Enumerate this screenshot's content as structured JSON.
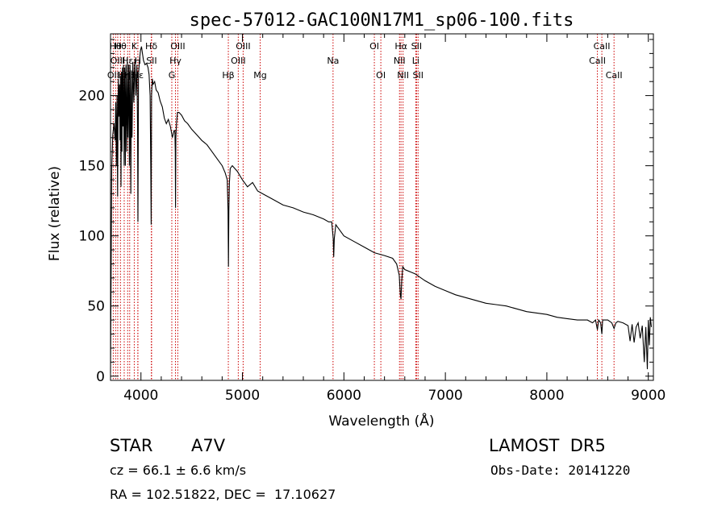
{
  "chart_data": {
    "type": "line",
    "title": "spec-57012-GAC100N17M1_sp06-100.fits",
    "xlabel": "Wavelength (Å)",
    "ylabel": "Flux (relative)",
    "xlim": [
      3700,
      9050
    ],
    "ylim": [
      -3,
      244
    ],
    "xticks": [
      4000,
      5000,
      6000,
      7000,
      8000,
      9000
    ],
    "yticks": [
      0,
      50,
      100,
      150,
      200
    ],
    "grid": false,
    "series": [
      {
        "color": "#000000",
        "x": [
          3700,
          3712,
          3722,
          3734,
          3745,
          3752,
          3758,
          3764,
          3770,
          3776,
          3782,
          3788,
          3794,
          3798,
          3803,
          3808,
          3813,
          3818,
          3823,
          3828,
          3834,
          3840,
          3846,
          3852,
          3860,
          3866,
          3872,
          3880,
          3886,
          3892,
          3900,
          3906,
          3912,
          3920,
          3930,
          3940,
          3950,
          3960,
          3966,
          3970,
          3976,
          3985,
          3995,
          4005,
          4015,
          4025,
          4040,
          4055,
          4070,
          4080,
          4090,
          4097,
          4101,
          4105,
          4112,
          4120,
          4135,
          4150,
          4170,
          4190,
          4210,
          4230,
          4250,
          4270,
          4290,
          4310,
          4326,
          4334,
          4338,
          4341,
          4344,
          4350,
          4360,
          4375,
          4400,
          4430,
          4460,
          4500,
          4550,
          4600,
          4650,
          4700,
          4750,
          4800,
          4830,
          4850,
          4858,
          4862,
          4866,
          4872,
          4880,
          4900,
          4950,
          5000,
          5050,
          5100,
          5150,
          5200,
          5300,
          5400,
          5500,
          5600,
          5700,
          5800,
          5850,
          5880,
          5895,
          5900,
          5905,
          5920,
          6000,
          6100,
          6200,
          6300,
          6400,
          6480,
          6520,
          6545,
          6556,
          6563,
          6570,
          6580,
          6600,
          6700,
          6800,
          6900,
          7000,
          7100,
          7200,
          7300,
          7400,
          7500,
          7600,
          7700,
          7800,
          7900,
          8000,
          8100,
          8200,
          8300,
          8400,
          8450,
          8480,
          8498,
          8510,
          8530,
          8542,
          8550,
          8600,
          8640,
          8662,
          8680,
          8700,
          8750,
          8800,
          8820,
          8840,
          8860,
          8880,
          8900,
          8920,
          8940,
          8960,
          8975,
          8990,
          9000,
          9010,
          9020,
          9030
        ],
        "values": [
          2,
          148,
          172,
          180,
          168,
          195,
          150,
          200,
          128,
          212,
          185,
          208,
          168,
          214,
          135,
          217,
          160,
          220,
          178,
          222,
          150,
          220,
          150,
          222,
          160,
          224,
          170,
          222,
          150,
          222,
          130,
          218,
          170,
          224,
          195,
          226,
          200,
          222,
          180,
          110,
          215,
          225,
          232,
          235,
          230,
          225,
          222,
          223,
          220,
          215,
          200,
          150,
          108,
          200,
          212,
          208,
          210,
          204,
          202,
          196,
          192,
          184,
          180,
          183,
          178,
          170,
          175,
          175,
          160,
          120,
          170,
          180,
          188,
          188,
          186,
          182,
          180,
          176,
          172,
          168,
          165,
          160,
          155,
          150,
          145,
          140,
          118,
          78,
          118,
          138,
          148,
          150,
          146,
          140,
          135,
          138,
          132,
          130,
          126,
          122,
          120,
          117,
          115,
          112,
          110,
          110,
          98,
          85,
          98,
          108,
          100,
          96,
          92,
          88,
          86,
          84,
          80,
          72,
          58,
          55,
          68,
          78,
          76,
          73,
          68,
          64,
          61,
          58,
          56,
          54,
          52,
          51,
          50,
          48,
          46,
          45,
          44,
          42,
          41,
          40,
          40,
          38,
          40,
          33,
          40,
          38,
          30,
          40,
          40,
          38,
          34,
          38,
          39,
          38,
          36,
          25,
          37,
          24,
          35,
          38,
          27,
          36,
          10,
          35,
          5,
          40,
          22,
          42,
          35
        ]
      }
    ],
    "lines": [
      {
        "x": 3727,
        "label": "OII",
        "row": 2
      },
      {
        "x": 3750,
        "label": "Hθ",
        "row": 0
      },
      {
        "x": 3771,
        "label": "OIII",
        "row": 1
      },
      {
        "x": 3798,
        "label": "Hθ",
        "row": 0
      },
      {
        "x": 3835,
        "label": "Hη",
        "row": 2
      },
      {
        "x": 3869,
        "label": "Hε",
        "row": 1
      },
      {
        "x": 3889,
        "label": "Hζ",
        "row": 2
      },
      {
        "x": 3934,
        "label": "K",
        "row": 0
      },
      {
        "x": 3969,
        "label": "H",
        "row": 1
      },
      {
        "x": 3970,
        "label": "Hε",
        "row": 2
      },
      {
        "x": 4102,
        "label": "Hδ",
        "row": 0
      },
      {
        "x": 4105,
        "label": "SII",
        "row": 1
      },
      {
        "x": 4304,
        "label": "G",
        "row": 2
      },
      {
        "x": 4340,
        "label": "Hγ",
        "row": 1
      },
      {
        "x": 4363,
        "label": "OIII",
        "row": 0
      },
      {
        "x": 4861,
        "label": "Hβ",
        "row": 2
      },
      {
        "x": 4959,
        "label": "OIII",
        "row": 1
      },
      {
        "x": 5007,
        "label": "OIII",
        "row": 0
      },
      {
        "x": 5175,
        "label": "Mg",
        "row": 2
      },
      {
        "x": 5893,
        "label": "Na",
        "row": 1
      },
      {
        "x": 6300,
        "label": "OI",
        "row": 0
      },
      {
        "x": 6364,
        "label": "OI",
        "row": 2
      },
      {
        "x": 6548,
        "label": "NII",
        "row": 1
      },
      {
        "x": 6563,
        "label": "Hα",
        "row": 0
      },
      {
        "x": 6583,
        "label": "NII",
        "row": 2
      },
      {
        "x": 6708,
        "label": "Li",
        "row": 1
      },
      {
        "x": 6716,
        "label": "SII",
        "row": 0
      },
      {
        "x": 6731,
        "label": "SII",
        "row": 2
      },
      {
        "x": 8498,
        "label": "CaII",
        "row": 1
      },
      {
        "x": 8542,
        "label": "CaII",
        "row": 0
      },
      {
        "x": 8662,
        "label": "CaII",
        "row": 2
      }
    ],
    "line_color": "#cc0000"
  },
  "info": {
    "class": "STAR",
    "subclass": "A7V",
    "survey": "LAMOST  DR5",
    "cz": "cz = 66.1 ± 6.6 km/s",
    "obs_date": "Obs-Date: 20141220",
    "coords": "RA = 102.51822, DEC =  17.10627"
  }
}
